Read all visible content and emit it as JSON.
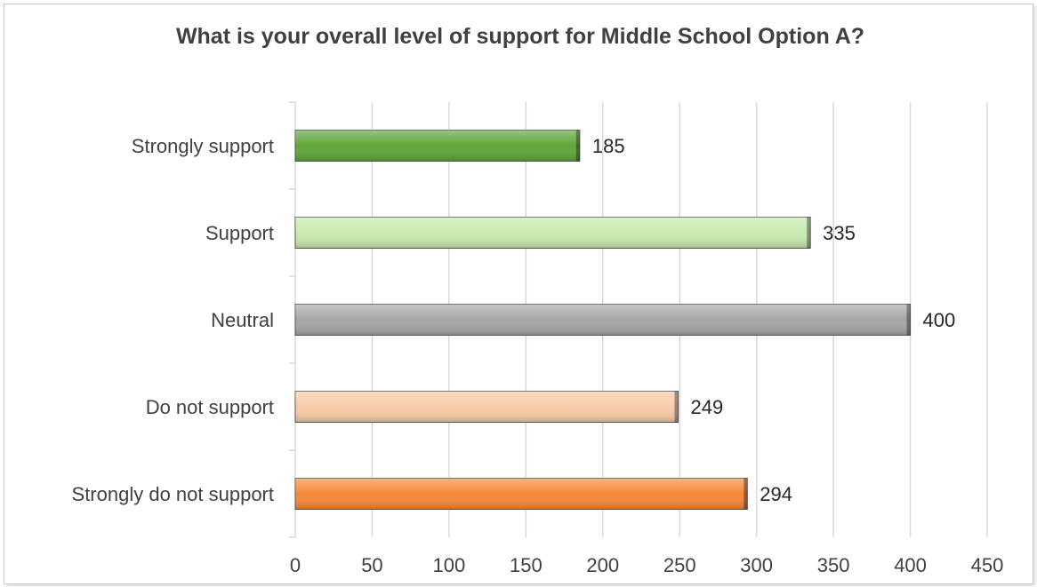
{
  "chart_data": {
    "type": "bar",
    "orientation": "horizontal",
    "title": "What is your overall level of support for Middle School Option A?",
    "categories": [
      "Strongly support",
      "Support",
      "Neutral",
      "Do not support",
      "Strongly do not support"
    ],
    "values": [
      185,
      335,
      400,
      249,
      294
    ],
    "colors": [
      "#5fa63a",
      "#c9eaae",
      "#a6a6a6",
      "#f8cba9",
      "#f5893a"
    ],
    "xlim": [
      0,
      450
    ],
    "xticks": [
      0,
      50,
      100,
      150,
      200,
      250,
      300,
      350,
      400,
      450
    ],
    "xlabel": "",
    "ylabel": "",
    "grid": "vertical",
    "legend": "none",
    "data_labels": true
  }
}
